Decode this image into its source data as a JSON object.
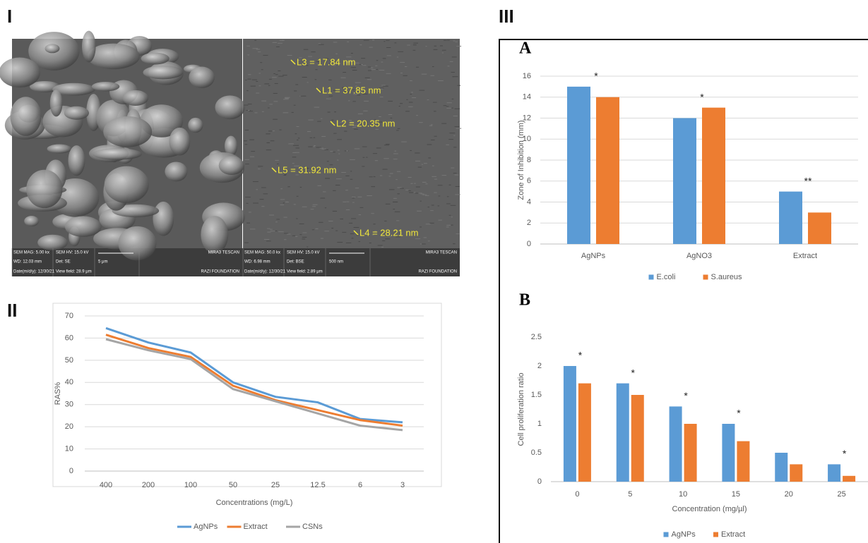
{
  "panels": {
    "one": "I",
    "two": "II",
    "three": "III"
  },
  "sem": [
    {
      "info": [
        "SEM MAG: 5.00 kx",
        "SEM HV: 15.0 kV",
        "WD: 12.03 mm",
        "Det: SE",
        "5 μm",
        "Date(m/d/y): 12/30/21",
        "View field: 28.9 μm",
        "MIRA3 TESCAN",
        "RAZI FOUNDATION"
      ]
    },
    {
      "info": [
        "SEM MAG: 50.0 kx",
        "SEM HV: 15.0 kV",
        "WD: 6.98 mm",
        "Det: BSE",
        "500 nm",
        "Date(m/d/y): 12/30/21",
        "View field: 2.89 μm",
        "MIRA3 TESCAN",
        "RAZI FOUNDATION"
      ],
      "measurements": [
        "L3 = 17.84 nm",
        "L1 = 37.85 nm",
        "L2 = 20.35 nm",
        "L5 = 31.92 nm",
        "L4 = 28.21 nm"
      ]
    }
  ],
  "chart_data": [
    {
      "type": "line",
      "x_label": "Concentrations (mg/L)",
      "y_label": "RAS%",
      "categories": [
        "400",
        "200",
        "100",
        "50",
        "25",
        "12.5",
        "6",
        "3"
      ],
      "series": [
        {
          "name": "AgNPs",
          "color": "#5b9bd5",
          "values": [
            64.5,
            58,
            53.5,
            40,
            33.5,
            31,
            23.5,
            22
          ]
        },
        {
          "name": "Extract",
          "color": "#ed7d31",
          "values": [
            61.5,
            55.5,
            51.5,
            38.5,
            32,
            27.5,
            23,
            20.5
          ]
        },
        {
          "name": "CSNs",
          "color": "#a5a5a5",
          "values": [
            59.5,
            54.5,
            50.5,
            37,
            31.5,
            26,
            20.5,
            18.5
          ]
        }
      ],
      "ylim": [
        0,
        70
      ],
      "yticks": [
        0,
        10,
        20,
        30,
        40,
        50,
        60,
        70
      ],
      "grid": true,
      "legend": "bottom"
    },
    {
      "type": "bar",
      "title": "A",
      "y_label": "Zone of Inhibition (mm)",
      "categories": [
        "AgNPs",
        "AgNO3",
        "Extract"
      ],
      "series": [
        {
          "name": "E.coli",
          "color": "#5b9bd5",
          "values": [
            15,
            12,
            5
          ]
        },
        {
          "name": "S.aureus",
          "color": "#ed7d31",
          "values": [
            14,
            13,
            3
          ]
        }
      ],
      "annotations": [
        {
          "text": "*",
          "x": "AgNPs"
        },
        {
          "text": "*",
          "x": "AgNO3"
        },
        {
          "text": "**",
          "x": "Extract"
        }
      ],
      "ylim": [
        0,
        16
      ],
      "yticks": [
        0,
        2,
        4,
        6,
        8,
        10,
        12,
        14,
        16
      ],
      "grid": true,
      "legend": "bottom"
    },
    {
      "type": "bar",
      "title": "B",
      "x_label": "Concentration (mg/µl)",
      "y_label": "Cell proliferation ratio",
      "categories": [
        "0",
        "5",
        "10",
        "15",
        "20",
        "25"
      ],
      "series": [
        {
          "name": "AgNPs",
          "color": "#5b9bd5",
          "values": [
            2,
            1.7,
            1.3,
            1,
            0.5,
            0.3
          ]
        },
        {
          "name": "Extract",
          "color": "#ed7d31",
          "values": [
            1.7,
            1.5,
            1,
            0.7,
            0.3,
            0.1
          ]
        }
      ],
      "annotations": [
        {
          "text": "*",
          "x": "0"
        },
        {
          "text": "*",
          "x": "5"
        },
        {
          "text": "*",
          "x": "10"
        },
        {
          "text": "*",
          "x": "15"
        },
        {
          "text": "*",
          "x": "25"
        }
      ],
      "ylim": [
        0,
        2.5
      ],
      "yticks": [
        0,
        0.5,
        1,
        1.5,
        2,
        2.5
      ],
      "grid": false,
      "legend": "bottom"
    }
  ]
}
